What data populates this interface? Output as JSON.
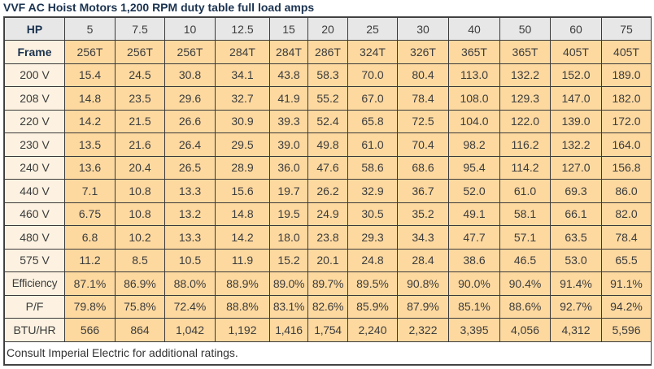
{
  "title": "VVF AC Hoist Motors 1,200 RPM duty table full load amps",
  "table": {
    "hp_label": "HP",
    "hp": [
      "5",
      "7.5",
      "10",
      "12.5",
      "15",
      "20",
      "25",
      "30",
      "40",
      "50",
      "60",
      "75"
    ],
    "rows": [
      {
        "label": "Frame",
        "values": [
          "256T",
          "256T",
          "256T",
          "284T",
          "284T",
          "286T",
          "324T",
          "326T",
          "365T",
          "365T",
          "405T",
          "405T"
        ]
      },
      {
        "label": "200 V",
        "values": [
          "15.4",
          "24.5",
          "30.8",
          "34.1",
          "43.8",
          "58.3",
          "70.0",
          "80.4",
          "113.0",
          "132.2",
          "152.0",
          "189.0"
        ]
      },
      {
        "label": "208 V",
        "values": [
          "14.8",
          "23.5",
          "29.6",
          "32.7",
          "41.9",
          "55.2",
          "67.0",
          "78.4",
          "108.0",
          "129.3",
          "147.0",
          "182.0"
        ]
      },
      {
        "label": "220 V",
        "values": [
          "14.2",
          "21.5",
          "26.6",
          "30.9",
          "39.3",
          "52.4",
          "65.8",
          "72.5",
          "104.0",
          "122.0",
          "139.0",
          "172.0"
        ]
      },
      {
        "label": "230 V",
        "values": [
          "13.5",
          "21.6",
          "26.4",
          "29.5",
          "39.0",
          "49.8",
          "61.0",
          "70.4",
          "98.2",
          "116.2",
          "132.2",
          "164.0"
        ]
      },
      {
        "label": "240 V",
        "values": [
          "13.6",
          "20.4",
          "26.5",
          "28.9",
          "36.0",
          "47.6",
          "58.6",
          "68.6",
          "95.4",
          "114.2",
          "127.0",
          "156.8"
        ]
      },
      {
        "label": "440 V",
        "values": [
          "7.1",
          "10.8",
          "13.3",
          "15.6",
          "19.7",
          "26.2",
          "32.9",
          "36.7",
          "52.0",
          "61.0",
          "69.3",
          "86.0"
        ]
      },
      {
        "label": "460 V",
        "values": [
          "6.75",
          "10.8",
          "13.2",
          "14.8",
          "19.5",
          "24.9",
          "30.5",
          "35.2",
          "49.1",
          "58.1",
          "66.1",
          "82.0"
        ]
      },
      {
        "label": "480 V",
        "values": [
          "6.8",
          "10.2",
          "13.3",
          "14.2",
          "18.0",
          "23.8",
          "29.3",
          "34.3",
          "47.7",
          "57.1",
          "63.5",
          "78.4"
        ]
      },
      {
        "label": "575 V",
        "values": [
          "11.2",
          "8.5",
          "10.5",
          "11.9",
          "15.2",
          "20.1",
          "24.8",
          "28.4",
          "38.6",
          "46.5",
          "53.0",
          "65.5"
        ]
      },
      {
        "label": "Efficiency",
        "values": [
          "87.1%",
          "86.9%",
          "88.0%",
          "88.9%",
          "89.0%",
          "89.7%",
          "89.5%",
          "90.8%",
          "90.0%",
          "90.4%",
          "91.4%",
          "91.1%"
        ]
      },
      {
        "label": "P/F",
        "values": [
          "79.8%",
          "75.8%",
          "72.4%",
          "88.8%",
          "83.1%",
          "82.6%",
          "85.9%",
          "87.9%",
          "85.1%",
          "88.6%",
          "92.7%",
          "94.2%"
        ]
      },
      {
        "label": "BTU/HR",
        "values": [
          "566",
          "864",
          "1,042",
          "1,192",
          "1,416",
          "1,754",
          "2,240",
          "2,322",
          "3,395",
          "4,056",
          "4,312",
          "5,596"
        ]
      }
    ],
    "footnote": "Consult Imperial Electric for additional ratings."
  },
  "colors": {
    "header_bg": "#e7e7e7",
    "label_bg": "#fdf2e1",
    "value_bg": "#fdd9a0",
    "title_color": "#1b3350"
  }
}
